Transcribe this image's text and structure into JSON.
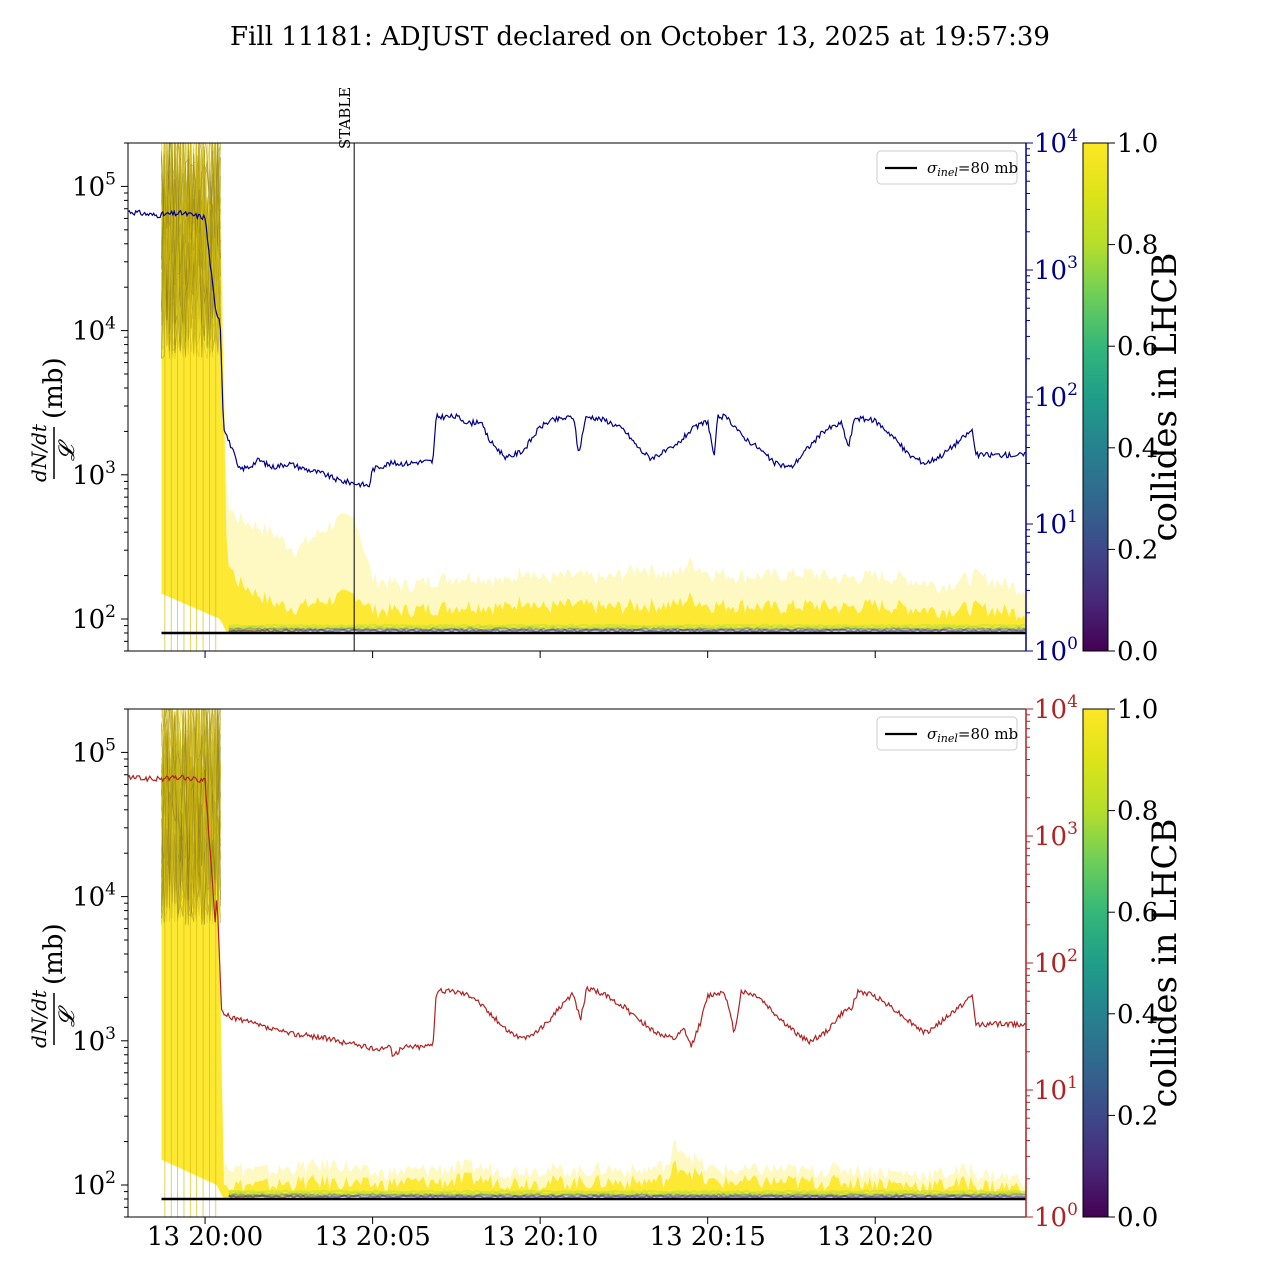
{
  "title": "Fill 11181: ADJUST declared on October 13, 2025 at 19:57:39",
  "x_tick_labels": [
    "13 20:00",
    "13 20:05",
    "13 20:10",
    "13 20:15",
    "13 20:20"
  ],
  "colors": {
    "top_right_axis": "#00008b",
    "bottom_right_axis": "#b22222",
    "reference_line": "#000000",
    "band_high": "#fde725",
    "band_low": "#440154"
  },
  "chart_data": [
    {
      "type": "line",
      "panel": "top",
      "ylabel_numerator": "dN/dt",
      "ylabel_denominator": "𝓛",
      "ylabel_unit": "(mb)",
      "yscale": "log",
      "ylim": [
        60,
        200000
      ],
      "left_ticks": [
        {
          "value": 100,
          "label": "10",
          "exp": "2"
        },
        {
          "value": 1000,
          "label": "10",
          "exp": "3"
        },
        {
          "value": 10000,
          "label": "10",
          "exp": "4"
        },
        {
          "value": 100000,
          "label": "10",
          "exp": "5"
        }
      ],
      "right_axis": {
        "scale": "log",
        "ylim": [
          1,
          10000
        ],
        "ticks": [
          {
            "value": 1,
            "label": "10",
            "exp": "0"
          },
          {
            "value": 10,
            "label": "10",
            "exp": "1"
          },
          {
            "value": 100,
            "label": "10",
            "exp": "2"
          },
          {
            "value": 1000,
            "label": "10",
            "exp": "3"
          },
          {
            "value": 10000,
            "label": "10",
            "exp": "4"
          }
        ]
      },
      "xlim_minutes_after_20_00": [
        -2.3,
        24.5
      ],
      "vline": {
        "x_minutes": 4.45,
        "label": "STABLE"
      },
      "reference_line": {
        "y": 80,
        "legend": "σ",
        "legend_sub": "inel",
        "legend_rest": "=80 mb"
      },
      "right_series": {
        "x_minutes": [
          -2.3,
          -1.5,
          -0.7,
          0.0,
          0.3,
          0.45,
          0.55,
          0.7,
          0.8,
          1.0,
          1.3,
          1.6,
          2.0,
          2.5,
          3.0,
          3.5,
          4.0,
          4.45,
          4.9,
          5.0,
          5.5,
          6.0,
          6.5,
          6.8,
          6.9,
          7.5,
          7.9,
          8.2,
          8.5,
          9.0,
          9.5,
          10.0,
          10.3,
          11.0,
          11.15,
          11.35,
          11.5,
          12.0,
          12.5,
          13.0,
          13.3,
          14.0,
          14.5,
          15.0,
          15.2,
          15.3,
          15.5,
          15.8,
          16.0,
          16.5,
          17.0,
          17.5,
          18.0,
          18.5,
          19.0,
          19.2,
          19.4,
          19.5,
          20.0,
          20.5,
          21.0,
          21.5,
          22.0,
          22.5,
          22.9,
          23.0,
          24.5
        ],
        "values": [
          2900,
          2700,
          2800,
          2600,
          500,
          400,
          60,
          45,
          40,
          27,
          28,
          32,
          28,
          30,
          27,
          25,
          22,
          21,
          20,
          27,
          30,
          30,
          31,
          31,
          70,
          70,
          62,
          65,
          45,
          33,
          38,
          58,
          65,
          70,
          35,
          68,
          70,
          65,
          55,
          38,
          33,
          40,
          55,
          65,
          33,
          70,
          70,
          60,
          50,
          40,
          30,
          28,
          40,
          55,
          62,
          40,
          70,
          68,
          65,
          50,
          35,
          30,
          35,
          45,
          55,
          35,
          35
        ]
      },
      "band": {
        "x_minutes": [
          -1.3,
          0.45,
          0.65,
          1.0,
          2.0,
          2.7,
          3.3,
          3.9,
          4.5,
          5.0,
          6.0,
          7.0,
          8.0,
          9.0,
          9.6,
          10.0,
          11.0,
          12.0,
          13.0,
          14.0,
          14.5,
          15.0,
          16.0,
          17.0,
          18.0,
          19.0,
          20.0,
          21.0,
          22.0,
          23.0,
          24.5
        ],
        "upper": [
          200000,
          200000,
          600,
          500,
          400,
          300,
          380,
          480,
          500,
          190,
          170,
          190,
          200,
          180,
          230,
          190,
          200,
          190,
          230,
          200,
          250,
          210,
          200,
          200,
          210,
          190,
          200,
          190,
          170,
          200,
          160
        ],
        "dense_upper": [
          80000,
          80000,
          250,
          180,
          130,
          120,
          130,
          140,
          150,
          115,
          115,
          120,
          125,
          120,
          140,
          120,
          125,
          120,
          125,
          125,
          140,
          125,
          125,
          120,
          125,
          120,
          125,
          120,
          115,
          120,
          110
        ],
        "lower": [
          150,
          100,
          80,
          82,
          83,
          83,
          84,
          84,
          84,
          84,
          84,
          84,
          84,
          84,
          84,
          84,
          84,
          84,
          84,
          84,
          84,
          84,
          84,
          84,
          84,
          84,
          84,
          84,
          84,
          84,
          84
        ]
      },
      "colorbar": {
        "label": "collides in LHCB",
        "min": 0.0,
        "max": 1.0,
        "ticks": [
          "0.0",
          "0.2",
          "0.4",
          "0.6",
          "0.8",
          "1.0"
        ]
      }
    },
    {
      "type": "line",
      "panel": "bottom",
      "ylabel_numerator": "dN/dt",
      "ylabel_denominator": "𝓛",
      "ylabel_unit": "(mb)",
      "yscale": "log",
      "ylim": [
        60,
        200000
      ],
      "left_ticks": [
        {
          "value": 100,
          "label": "10",
          "exp": "2"
        },
        {
          "value": 1000,
          "label": "10",
          "exp": "3"
        },
        {
          "value": 10000,
          "label": "10",
          "exp": "4"
        },
        {
          "value": 100000,
          "label": "10",
          "exp": "5"
        }
      ],
      "right_axis": {
        "scale": "log",
        "ylim": [
          1,
          10000
        ],
        "ticks": [
          {
            "value": 1,
            "label": "10",
            "exp": "0"
          },
          {
            "value": 10,
            "label": "10",
            "exp": "1"
          },
          {
            "value": 100,
            "label": "10",
            "exp": "2"
          },
          {
            "value": 1000,
            "label": "10",
            "exp": "3"
          },
          {
            "value": 10000,
            "label": "10",
            "exp": "4"
          }
        ]
      },
      "xlim_minutes_after_20_00": [
        -2.3,
        24.5
      ],
      "reference_line": {
        "y": 80,
        "legend": "σ",
        "legend_sub": "inel",
        "legend_rest": "=80 mb"
      },
      "right_series": {
        "x_minutes": [
          -2.3,
          -1.5,
          -0.7,
          0.0,
          0.2,
          0.3,
          0.35,
          0.5,
          0.7,
          1.0,
          1.5,
          2.0,
          2.5,
          3.0,
          3.5,
          4.0,
          4.5,
          5.0,
          5.5,
          5.6,
          6.0,
          6.5,
          6.8,
          6.9,
          7.5,
          8.0,
          8.5,
          9.0,
          9.5,
          10.0,
          11.0,
          11.2,
          11.4,
          11.5,
          12.0,
          12.5,
          13.0,
          13.5,
          14.0,
          14.3,
          14.5,
          14.8,
          15.0,
          15.5,
          15.8,
          16.0,
          16.5,
          17.0,
          17.5,
          18.0,
          18.5,
          19.0,
          19.3,
          19.5,
          20.0,
          20.5,
          21.0,
          21.5,
          22.0,
          22.5,
          22.9,
          23.0,
          24.5
        ],
        "values": [
          2900,
          2800,
          2900,
          2700,
          500,
          200,
          350,
          40,
          38,
          36,
          33,
          30,
          28,
          27,
          26,
          24,
          23,
          21,
          22,
          19,
          22,
          22,
          23,
          60,
          60,
          55,
          40,
          30,
          25,
          30,
          58,
          35,
          65,
          62,
          55,
          45,
          35,
          28,
          25,
          30,
          22,
          35,
          55,
          60,
          28,
          60,
          55,
          40,
          30,
          24,
          28,
          40,
          45,
          60,
          55,
          45,
          35,
          28,
          35,
          45,
          55,
          33,
          33
        ]
      },
      "band": {
        "x_minutes": [
          -1.3,
          0.35,
          0.55,
          1.0,
          2.0,
          3.0,
          4.0,
          5.0,
          6.0,
          7.0,
          8.0,
          9.0,
          10.0,
          11.0,
          12.0,
          13.0,
          13.9,
          14.0,
          14.5,
          15.0,
          16.0,
          17.0,
          18.0,
          19.0,
          20.0,
          21.0,
          22.0,
          22.9,
          23.0,
          24.5
        ],
        "upper": [
          200000,
          200000,
          140,
          130,
          125,
          135,
          140,
          120,
          125,
          130,
          135,
          125,
          130,
          125,
          130,
          125,
          140,
          200,
          160,
          130,
          125,
          130,
          125,
          130,
          125,
          120,
          120,
          130,
          120,
          110
        ],
        "dense_upper": [
          80000,
          80000,
          100,
          100,
          100,
          105,
          105,
          100,
          105,
          105,
          110,
          105,
          105,
          105,
          105,
          105,
          110,
          140,
          125,
          105,
          105,
          105,
          105,
          105,
          105,
          100,
          100,
          105,
          100,
          95
        ],
        "lower": [
          150,
          100,
          80,
          82,
          83,
          83,
          84,
          84,
          84,
          84,
          84,
          84,
          84,
          84,
          84,
          84,
          84,
          84,
          84,
          84,
          84,
          84,
          84,
          84,
          84,
          84,
          84,
          84,
          84,
          84
        ]
      },
      "colorbar": {
        "label": "collides in LHCB",
        "min": 0.0,
        "max": 1.0,
        "ticks": [
          "0.0",
          "0.2",
          "0.4",
          "0.6",
          "0.8",
          "1.0"
        ]
      }
    }
  ]
}
